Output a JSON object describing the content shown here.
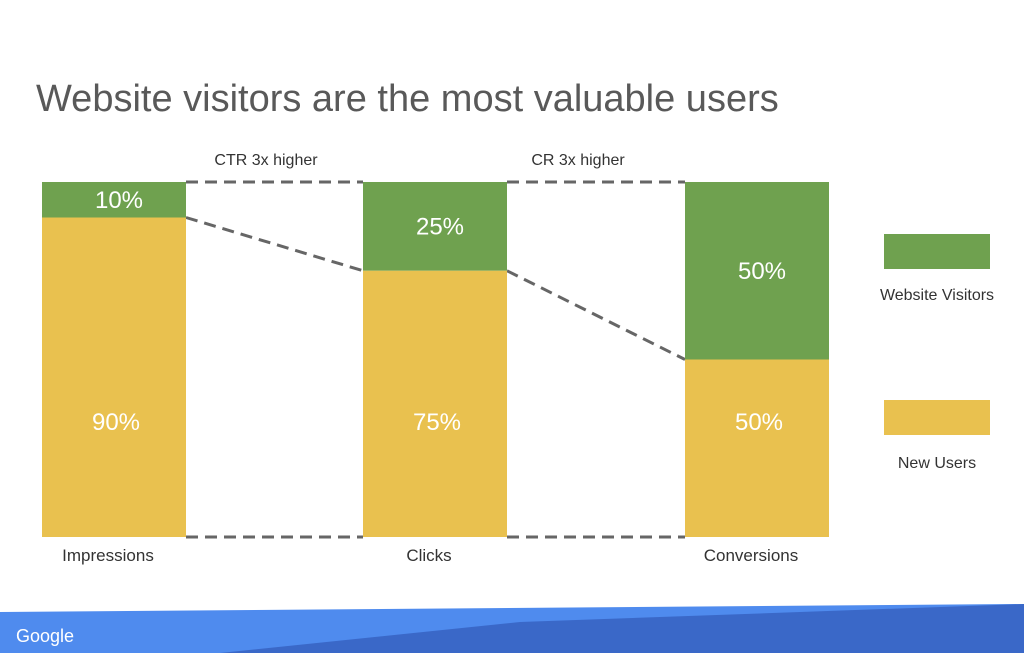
{
  "title": "Website visitors are the most valuable users",
  "chart_data": {
    "type": "bar",
    "stacked": true,
    "percent_stacked": true,
    "categories": [
      "Impressions",
      "Clicks",
      "Conversions"
    ],
    "series": [
      {
        "name": "Website Visitors",
        "color": "#6fa14f",
        "values": [
          10,
          25,
          50
        ],
        "labels": [
          "10%",
          "25%",
          "50%"
        ]
      },
      {
        "name": "New Users",
        "color": "#e9c14f",
        "values": [
          90,
          75,
          50
        ],
        "labels": [
          "90%",
          "75%",
          "50%"
        ]
      }
    ],
    "ylim": [
      0,
      100
    ],
    "grid": false,
    "legend": "right",
    "annotations": [
      {
        "text": "CTR 3x higher",
        "between": [
          "Impressions",
          "Clicks"
        ]
      },
      {
        "text": "CR 3x higher",
        "between": [
          "Clicks",
          "Conversions"
        ]
      }
    ]
  },
  "footer": {
    "brand": "Google",
    "band_colors": [
      "#4f8bee",
      "#3a68c8"
    ]
  }
}
